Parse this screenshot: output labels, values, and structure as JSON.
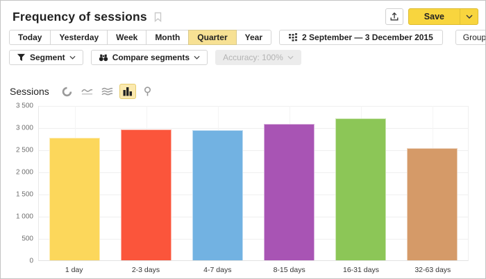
{
  "header": {
    "title": "Frequency of sessions",
    "save_label": "Save",
    "icons": {
      "bookmark": "bookmark-icon",
      "export": "export-icon",
      "save_caret": "chevron-down-icon"
    }
  },
  "toolbar": {
    "periods": [
      "Today",
      "Yesterday",
      "Week",
      "Month",
      "Quarter",
      "Year"
    ],
    "selected_period": "Quarter",
    "date_range": "2 September — 3 December 2015",
    "group_label": "Group: by day",
    "icons": {
      "calendar": "calendar-grid-icon"
    }
  },
  "segments": {
    "segment_label": "Segment",
    "compare_label": "Compare segments",
    "accuracy_label": "Accuracy: 100%",
    "accuracy_disabled": true,
    "icons": {
      "segment": "filter-funnel-icon",
      "compare": "binoculars-icon"
    }
  },
  "chart_header": {
    "metric_label": "Sessions",
    "chart_type_icons": [
      "pie-chart-icon",
      "line-chart-icon",
      "stacked-area-icon",
      "bar-chart-icon",
      "map-pin-icon"
    ],
    "selected_chart_type": "bar-chart-icon"
  },
  "chart_data": {
    "type": "bar",
    "title": "Sessions",
    "categories": [
      "1 day",
      "2-3 days",
      "4-7 days",
      "8-15 days",
      "16-31 days",
      "32-63 days"
    ],
    "values": [
      2780,
      2965,
      2950,
      3100,
      3220,
      2540
    ],
    "colors": [
      "#fcd75b",
      "#fb553b",
      "#72b2e2",
      "#a854b4",
      "#8cc657",
      "#d59a68"
    ],
    "xlabel": "",
    "ylabel": "",
    "ylim": [
      0,
      3500
    ],
    "ytick_step": 500,
    "ytick_labels": [
      "3 500",
      "3 000",
      "2 500",
      "2 000",
      "1 500",
      "1 000",
      "500",
      "0"
    ],
    "grid": true,
    "legend": "none"
  },
  "colors": {
    "accent_yellow": "#f8d53e",
    "selected_period_bg": "#f7e194",
    "selected_icon_bg": "#fbe9ae",
    "grid_line": "#efefef"
  }
}
